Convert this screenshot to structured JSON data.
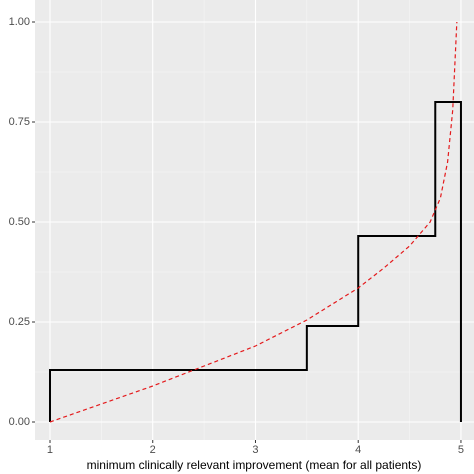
{
  "chart_data": {
    "type": "line",
    "x_label": "minimum clinically relevant improvement (mean for all patients)",
    "xlim": [
      0.854,
      5.127
    ],
    "xticks": [
      1,
      2,
      3,
      4,
      5
    ],
    "ylim": [
      -0.045,
      1.055
    ],
    "yticks": [
      {
        "value": 0,
        "label": "0.00"
      },
      {
        "value": 0.25,
        "label": "0.25"
      },
      {
        "value": 0.5,
        "label": "0.50"
      },
      {
        "value": 0.75,
        "label": "0.75"
      },
      {
        "value": 1,
        "label": "1.00"
      }
    ],
    "grid": true,
    "series": [
      {
        "x": [
          1,
          1,
          3.5,
          3.5,
          4,
          4,
          4.75,
          4.75,
          5,
          5
        ],
        "values": [
          0,
          0.13,
          0.13,
          0.24,
          0.24,
          0.465,
          0.465,
          0.8,
          0.8,
          0
        ],
        "color": "#000000",
        "dashed": false
      },
      {
        "x": [
          1,
          1.5,
          2,
          2.5,
          3,
          3.5,
          4,
          4.25,
          4.5,
          4.7,
          4.8,
          4.87,
          4.92,
          4.96
        ],
        "values": [
          0,
          0.045,
          0.09,
          0.14,
          0.19,
          0.255,
          0.335,
          0.385,
          0.44,
          0.5,
          0.56,
          0.65,
          0.78,
          1.0
        ],
        "color": "#e41a1c",
        "dashed": true
      }
    ]
  }
}
